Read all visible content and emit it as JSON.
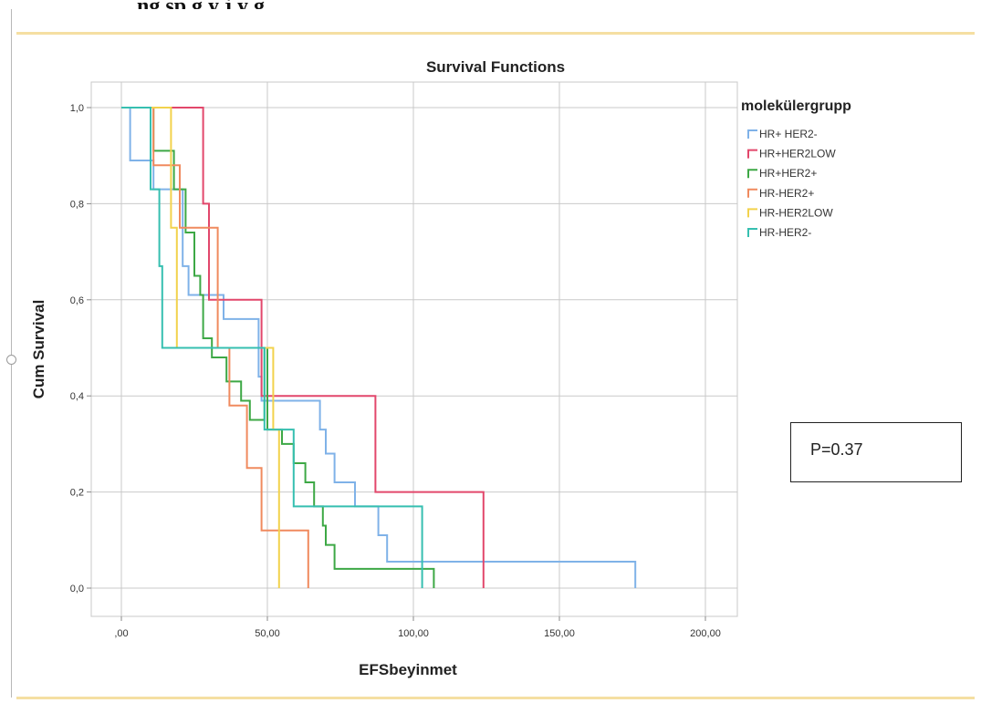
{
  "header_text": "ng sp        g     y       j     y   g",
  "chart_data": {
    "type": "line",
    "step": true,
    "title": "Survival Functions",
    "xlabel": "EFSbeyinmet",
    "ylabel": "Cum Survival",
    "xlim": [
      -5,
      210
    ],
    "ylim": [
      -0.05,
      1.05
    ],
    "x_ticks": [
      0,
      50,
      100,
      150,
      200
    ],
    "x_tick_labels": [
      ",00",
      "50,00",
      "100,00",
      "150,00",
      "200,00"
    ],
    "y_ticks": [
      0,
      0.2,
      0.4,
      0.6,
      0.8,
      1.0
    ],
    "y_tick_labels": [
      "0,0",
      "0,2",
      "0,4",
      "0,6",
      "0,8",
      "1,0"
    ],
    "grid": true,
    "legend_title": "molekülergrupp",
    "legend_position": "top-right",
    "annotation": "P=0.37",
    "series": [
      {
        "name": "HR+ HER2-",
        "color": "#7fb2e8",
        "points": [
          [
            0,
            1.0
          ],
          [
            3,
            0.89
          ],
          [
            9,
            0.89
          ],
          [
            11,
            0.83
          ],
          [
            19,
            0.83
          ],
          [
            21,
            0.67
          ],
          [
            23,
            0.61
          ],
          [
            30,
            0.61
          ],
          [
            35,
            0.56
          ],
          [
            44,
            0.56
          ],
          [
            47,
            0.44
          ],
          [
            48,
            0.39
          ],
          [
            66,
            0.39
          ],
          [
            68,
            0.33
          ],
          [
            70,
            0.28
          ],
          [
            73,
            0.22
          ],
          [
            80,
            0.17
          ],
          [
            88,
            0.11
          ],
          [
            91,
            0.055
          ],
          [
            176,
            0.055
          ],
          [
            176,
            0.0
          ]
        ]
      },
      {
        "name": "HR+HER2LOW",
        "color": "#e2476b",
        "points": [
          [
            0,
            1.0
          ],
          [
            25,
            1.0
          ],
          [
            28,
            0.8
          ],
          [
            30,
            0.6
          ],
          [
            46,
            0.6
          ],
          [
            48,
            0.4
          ],
          [
            86,
            0.4
          ],
          [
            87,
            0.2
          ],
          [
            124,
            0.2
          ],
          [
            124,
            0.0
          ]
        ]
      },
      {
        "name": "HR+HER2+",
        "color": "#3da845",
        "points": [
          [
            0,
            1.0
          ],
          [
            10,
            1.0
          ],
          [
            11,
            0.91
          ],
          [
            17,
            0.91
          ],
          [
            18,
            0.83
          ],
          [
            22,
            0.74
          ],
          [
            25,
            0.65
          ],
          [
            27,
            0.61
          ],
          [
            28,
            0.52
          ],
          [
            31,
            0.48
          ],
          [
            36,
            0.43
          ],
          [
            41,
            0.39
          ],
          [
            44,
            0.35
          ],
          [
            49,
            0.5
          ],
          [
            50,
            0.33
          ],
          [
            55,
            0.3
          ],
          [
            59,
            0.26
          ],
          [
            63,
            0.22
          ],
          [
            66,
            0.17
          ],
          [
            69,
            0.13
          ],
          [
            70,
            0.09
          ],
          [
            73,
            0.04
          ],
          [
            107,
            0.04
          ],
          [
            107,
            0.0
          ]
        ]
      },
      {
        "name": "HR-HER2+",
        "color": "#f08a5e",
        "points": [
          [
            0,
            1.0
          ],
          [
            10,
            1.0
          ],
          [
            11,
            0.88
          ],
          [
            18,
            0.88
          ],
          [
            20,
            0.75
          ],
          [
            29,
            0.75
          ],
          [
            33,
            0.5
          ],
          [
            37,
            0.38
          ],
          [
            40,
            0.38
          ],
          [
            43,
            0.25
          ],
          [
            45,
            0.25
          ],
          [
            48,
            0.12
          ],
          [
            64,
            0.12
          ],
          [
            64,
            0.0
          ]
        ]
      },
      {
        "name": "HR-HER2LOW",
        "color": "#f2d24c",
        "points": [
          [
            0,
            1.0
          ],
          [
            16,
            1.0
          ],
          [
            17,
            0.75
          ],
          [
            19,
            0.5
          ],
          [
            51,
            0.5
          ],
          [
            52,
            0.33
          ],
          [
            54,
            0.17
          ],
          [
            54,
            0.0
          ]
        ]
      },
      {
        "name": "HR-HER2-",
        "color": "#36bfb0",
        "points": [
          [
            0,
            1.0
          ],
          [
            9,
            1.0
          ],
          [
            10,
            0.83
          ],
          [
            12,
            0.83
          ],
          [
            13,
            0.67
          ],
          [
            14,
            0.5
          ],
          [
            48,
            0.5
          ],
          [
            49,
            0.33
          ],
          [
            58,
            0.33
          ],
          [
            59,
            0.17
          ],
          [
            103,
            0.17
          ],
          [
            103,
            0.0
          ]
        ]
      }
    ]
  }
}
